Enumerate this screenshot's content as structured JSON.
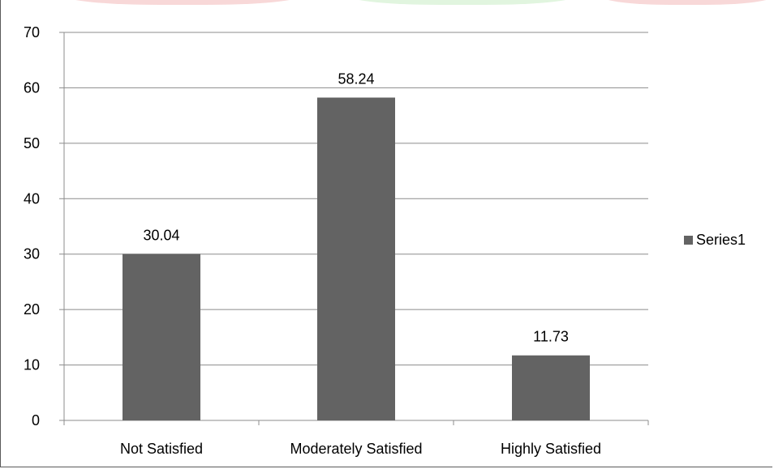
{
  "colors": {
    "bar": "#636363",
    "gridline": "#8c8c8c",
    "axis": "#8c8c8c",
    "frame": "#5a5a5a",
    "top_decor_red": "#f2b8b8",
    "top_decor_green": "#c9ecc4"
  },
  "legend": {
    "label": "Series1",
    "position": "right"
  },
  "chart_data": {
    "type": "bar",
    "categories": [
      "Not Satisfied",
      "Moderately Satisfied",
      "Highly Satisfied"
    ],
    "series": [
      {
        "name": "Series1",
        "values": [
          30.04,
          58.24,
          11.73
        ]
      }
    ],
    "data_labels": [
      "30.04",
      "58.24",
      "11.73"
    ],
    "ylim": [
      0,
      70
    ],
    "yticks": [
      0,
      10,
      20,
      30,
      40,
      50,
      60,
      70
    ],
    "ytick_labels": [
      "0",
      "10",
      "20",
      "30",
      "40",
      "50",
      "60",
      "70"
    ],
    "grid": true,
    "title": "",
    "xlabel": "",
    "ylabel": ""
  }
}
